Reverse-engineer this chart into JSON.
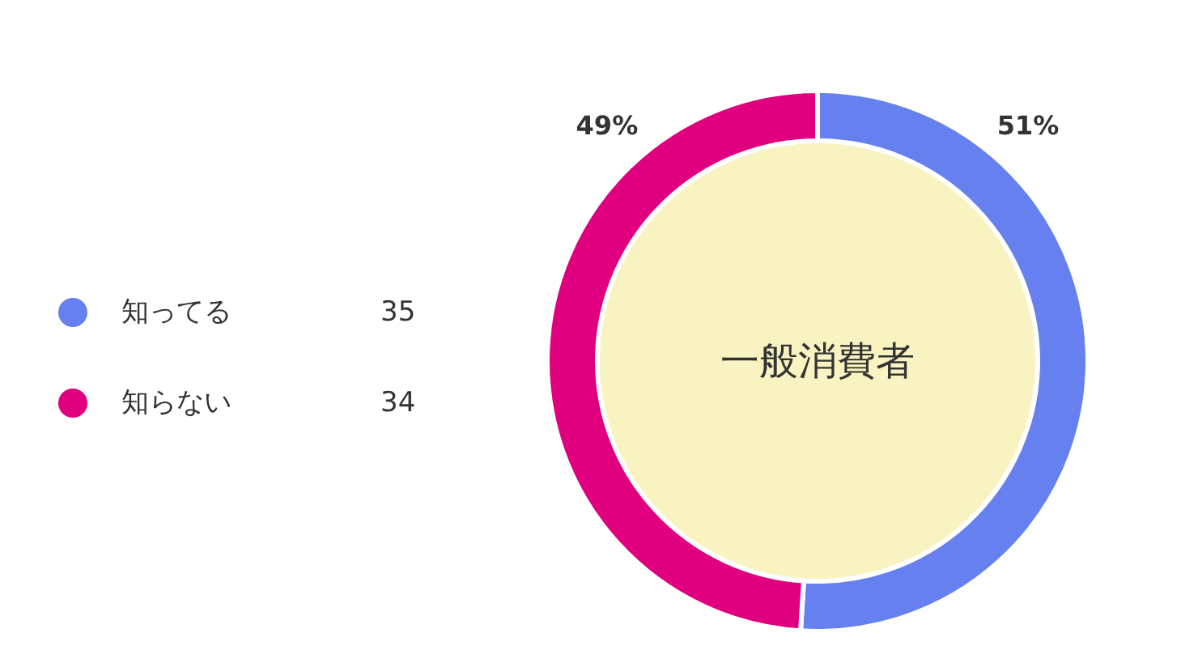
{
  "chart_data": {
    "type": "donut",
    "categories": [
      "知ってる",
      "知らない"
    ],
    "values": [
      51,
      49
    ],
    "colors": [
      "#6680f0",
      "#e0007f"
    ],
    "value_labels": [
      "51%",
      "49%"
    ],
    "annotations": [
      "一般消費者",
      "35",
      "34"
    ],
    "legend": "left"
  }
}
